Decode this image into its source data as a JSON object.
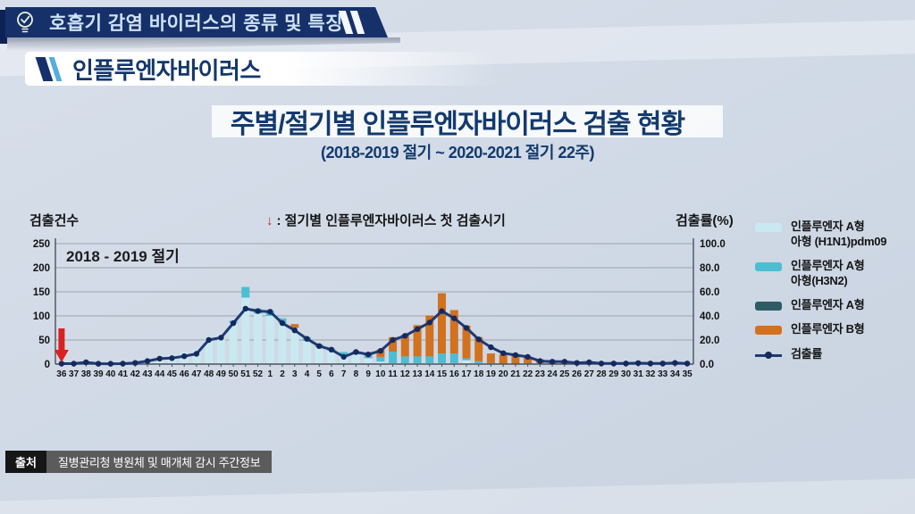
{
  "header": {
    "title": "호흡기 감염 바이러스의 종류 및 특징"
  },
  "section": {
    "title": "인플루엔자바이러스"
  },
  "main": {
    "title": "주별/절기별 인플루엔자바이러스 검출 현황",
    "subtitle": "(2018-2019 절기 ~ 2020-2021 절기 22주)"
  },
  "chart": {
    "left_axis_label": "검출건수",
    "right_axis_label": "검출률(%)",
    "annotation_arrow": "↓",
    "annotation_text": ": 절기별 인플루엔자바이러스 첫 검출시기",
    "season_label": "2018 - 2019 절기"
  },
  "chart_data": {
    "type": "bar+line",
    "stacked": true,
    "categories": [
      "36",
      "37",
      "38",
      "39",
      "40",
      "41",
      "42",
      "43",
      "44",
      "45",
      "46",
      "47",
      "48",
      "49",
      "50",
      "51",
      "52",
      "1",
      "2",
      "3",
      "4",
      "5",
      "6",
      "7",
      "8",
      "9",
      "10",
      "11",
      "12",
      "13",
      "14",
      "15",
      "16",
      "17",
      "18",
      "19",
      "20",
      "21",
      "22",
      "23",
      "24",
      "25",
      "26",
      "27",
      "28",
      "29",
      "30",
      "31",
      "32",
      "33",
      "34",
      "35"
    ],
    "left_axis": {
      "label": "검출건수",
      "min": 0,
      "max": 250,
      "ticks": [
        0,
        50,
        100,
        150,
        200,
        250
      ]
    },
    "right_axis": {
      "label": "검출률(%)",
      "min": 0,
      "max": 100,
      "ticks": [
        "0.0",
        "20.0",
        "40.0",
        "60.0",
        "80.0",
        "100.0"
      ]
    },
    "first_detection_marker": {
      "week": "36",
      "color": "#d92121",
      "meaning": "절기별 인플루엔자바이러스 첫 검출시기"
    },
    "series": [
      {
        "name": "인플루엔자 A형 아형 (H1N1)pdm09",
        "type": "bar",
        "color": "#c9e9f1",
        "values": [
          0,
          0,
          2,
          0,
          0,
          0,
          1,
          3,
          6,
          20,
          26,
          30,
          52,
          62,
          85,
          138,
          105,
          100,
          85,
          75,
          48,
          35,
          28,
          20,
          20,
          12,
          5,
          2,
          2,
          2,
          2,
          2,
          2,
          8,
          2,
          0,
          0,
          0,
          0,
          2,
          0,
          0,
          0,
          0,
          0,
          0,
          0,
          0,
          0,
          0,
          0,
          0
        ]
      },
      {
        "name": "인플루엔자 A형 아형(H3N2)",
        "type": "bar",
        "color": "#4dbdd2",
        "values": [
          0,
          0,
          0,
          0,
          0,
          0,
          0,
          0,
          0,
          0,
          0,
          0,
          0,
          0,
          5,
          22,
          10,
          10,
          10,
          0,
          8,
          6,
          4,
          5,
          3,
          5,
          10,
          24,
          14,
          14,
          14,
          20,
          20,
          4,
          4,
          2,
          0,
          0,
          2,
          0,
          0,
          0,
          0,
          0,
          0,
          0,
          0,
          0,
          0,
          0,
          0,
          0
        ]
      },
      {
        "name": "인플루엔자 A형",
        "type": "bar",
        "color": "#2f5b66",
        "values": [
          0,
          0,
          0,
          0,
          0,
          0,
          0,
          0,
          0,
          0,
          0,
          0,
          0,
          0,
          0,
          0,
          0,
          0,
          0,
          0,
          0,
          0,
          0,
          0,
          0,
          0,
          0,
          0,
          0,
          0,
          0,
          0,
          0,
          0,
          0,
          0,
          0,
          0,
          0,
          0,
          0,
          0,
          0,
          0,
          0,
          0,
          0,
          0,
          0,
          0,
          0,
          0
        ]
      },
      {
        "name": "인플루엔자 B형",
        "type": "bar",
        "color": "#d2711e",
        "values": [
          0,
          0,
          0,
          0,
          0,
          0,
          0,
          0,
          0,
          0,
          0,
          0,
          0,
          0,
          0,
          0,
          0,
          0,
          0,
          8,
          0,
          0,
          0,
          0,
          3,
          6,
          15,
          30,
          45,
          65,
          85,
          125,
          90,
          68,
          50,
          20,
          20,
          20,
          14,
          8,
          8,
          5,
          3,
          2,
          1,
          0,
          0,
          0,
          0,
          0,
          0,
          0
        ]
      },
      {
        "name": "검출률",
        "type": "line",
        "axis": "right",
        "color": "#1d3a72",
        "values": [
          0.4,
          0.4,
          1.5,
          0.3,
          0.3,
          0.4,
          1.0,
          2.5,
          4.5,
          5.0,
          6.5,
          8.5,
          20.0,
          22.0,
          34.0,
          46.0,
          44.0,
          43.5,
          34.0,
          28.0,
          21.0,
          15.0,
          12.0,
          6.0,
          10.0,
          8.0,
          11.0,
          20.0,
          23.5,
          29.0,
          34.5,
          44.0,
          38.0,
          30.0,
          20.5,
          14.0,
          9.0,
          7.5,
          6.0,
          2.5,
          2.0,
          2.0,
          1.0,
          1.5,
          0.5,
          0.5,
          0.5,
          0.8,
          0.5,
          0.5,
          1.0,
          0.5
        ]
      }
    ]
  },
  "legend": {
    "items": [
      {
        "type": "bar",
        "color": "#c9e9f1",
        "label": "인플루엔자 A형\n아형 (H1N1)pdm09"
      },
      {
        "type": "bar",
        "color": "#4dbdd2",
        "label": "인플루엔자 A형\n아형(H3N2)"
      },
      {
        "type": "bar",
        "color": "#2f5b66",
        "label": "인플루엔자 A형"
      },
      {
        "type": "bar",
        "color": "#d2711e",
        "label": "인플루엔자 B형"
      },
      {
        "type": "line",
        "color": "#1d3a72",
        "label": "검출률"
      }
    ]
  },
  "source": {
    "label": "출처",
    "text": "질병관리청 병원체 및 매개체 감시 주간정보"
  },
  "colors": {
    "ribbon_navy": "#16306a",
    "title_navy": "#143a6d",
    "marker_red": "#d92121",
    "rate_line": "#1d3a72",
    "grid": "#9aa3ae",
    "axis": "#4c525a"
  }
}
